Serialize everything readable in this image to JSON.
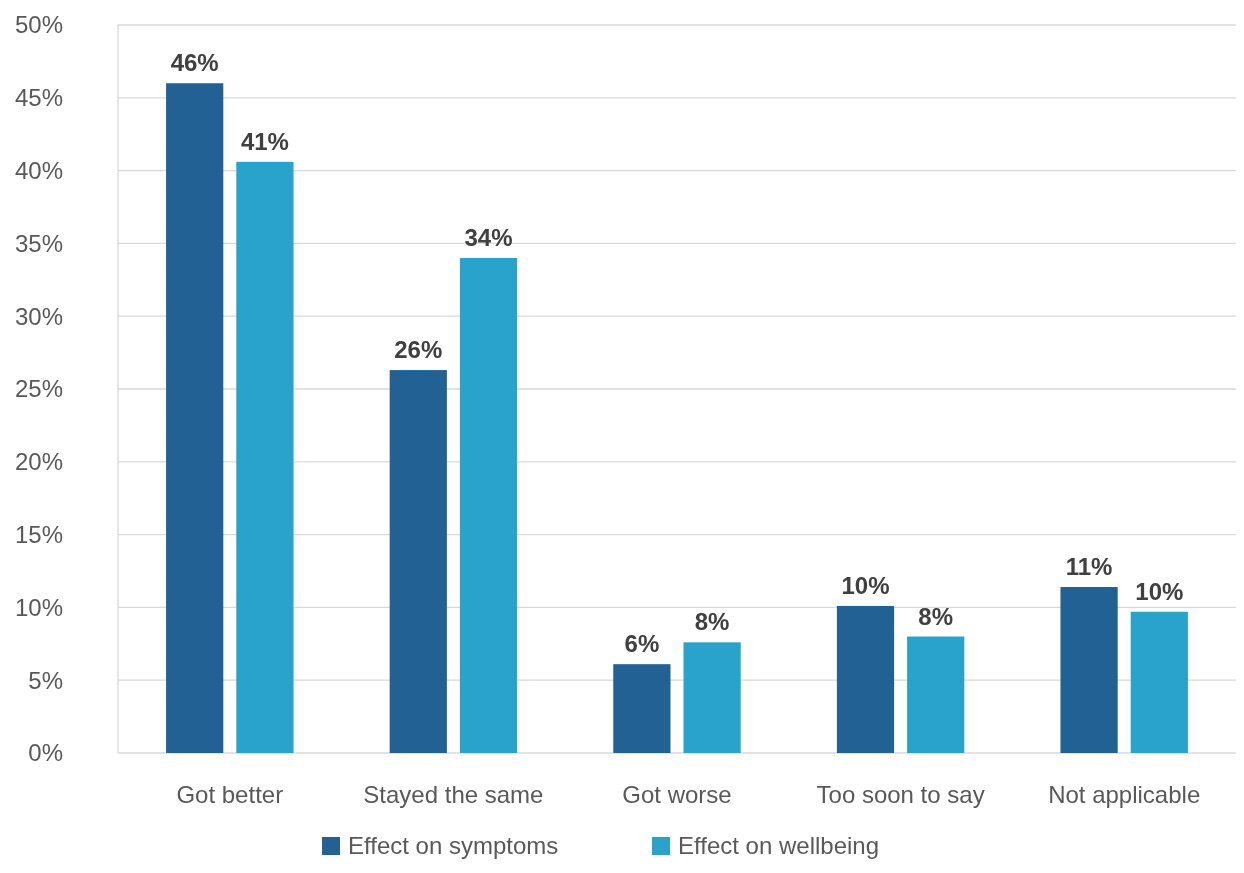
{
  "chart_data": {
    "type": "bar",
    "categories": [
      "Got better",
      "Stayed the same",
      "Got worse",
      "Too soon to say",
      "Not applicable"
    ],
    "series": [
      {
        "name": "Effect on symptoms",
        "color": "#216193",
        "values": [
          46,
          26.3,
          6.1,
          10.1,
          11.4
        ],
        "value_labels": [
          "46%",
          "26%",
          "6%",
          "10%",
          "11%"
        ]
      },
      {
        "name": "Effect on wellbeing",
        "color": "#29a2cc",
        "values": [
          40.6,
          34,
          7.6,
          8,
          9.7
        ],
        "value_labels": [
          "41%",
          "34%",
          "8%",
          "8%",
          "10%"
        ]
      }
    ],
    "ylim": [
      0,
      50
    ],
    "yticks": [
      {
        "value": 0,
        "label": "0%"
      },
      {
        "value": 5,
        "label": "5%"
      },
      {
        "value": 10,
        "label": "10%"
      },
      {
        "value": 15,
        "label": "15%"
      },
      {
        "value": 20,
        "label": "20%"
      },
      {
        "value": 25,
        "label": "25%"
      },
      {
        "value": 30,
        "label": "30%"
      },
      {
        "value": 35,
        "label": "35%"
      },
      {
        "value": 40,
        "label": "40%"
      },
      {
        "value": 45,
        "label": "45%"
      },
      {
        "value": 50,
        "label": "50%"
      }
    ],
    "grid": "y",
    "legend": "bottom"
  }
}
